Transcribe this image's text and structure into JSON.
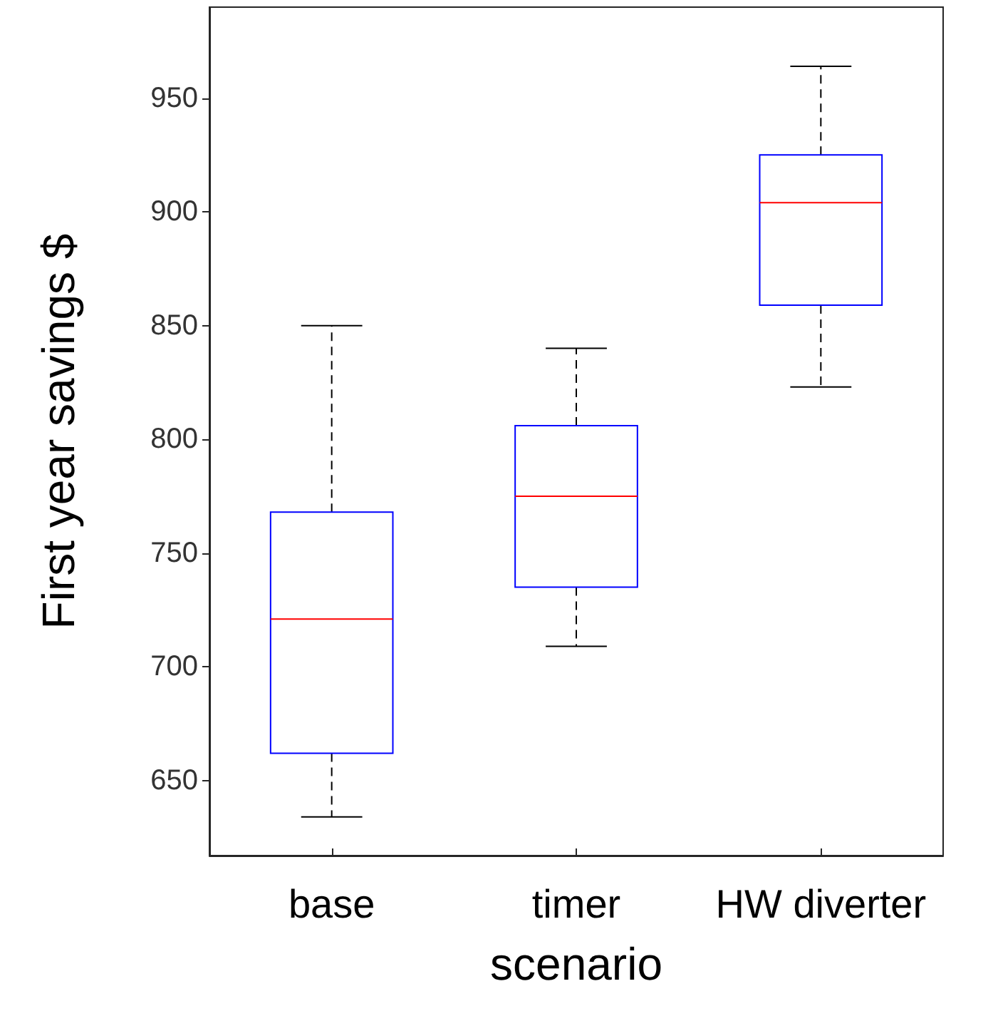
{
  "chart_data": {
    "type": "box",
    "xlabel": "scenario",
    "ylabel": "First year savings $",
    "categories": [
      "base",
      "timer",
      "HW diverter"
    ],
    "boxes": [
      {
        "low": 634,
        "q1": 662,
        "median": 721,
        "q3": 768,
        "high": 850
      },
      {
        "low": 709,
        "q1": 735,
        "median": 775,
        "q3": 806,
        "high": 840
      },
      {
        "low": 823,
        "q1": 859,
        "median": 904,
        "q3": 925,
        "high": 964
      }
    ],
    "color": "#0000ff",
    "line_style": "dashed",
    "ylim": [
      617,
      990
    ],
    "yticks": [
      650,
      700,
      750,
      800,
      850,
      900,
      950
    ],
    "grid": false
  }
}
